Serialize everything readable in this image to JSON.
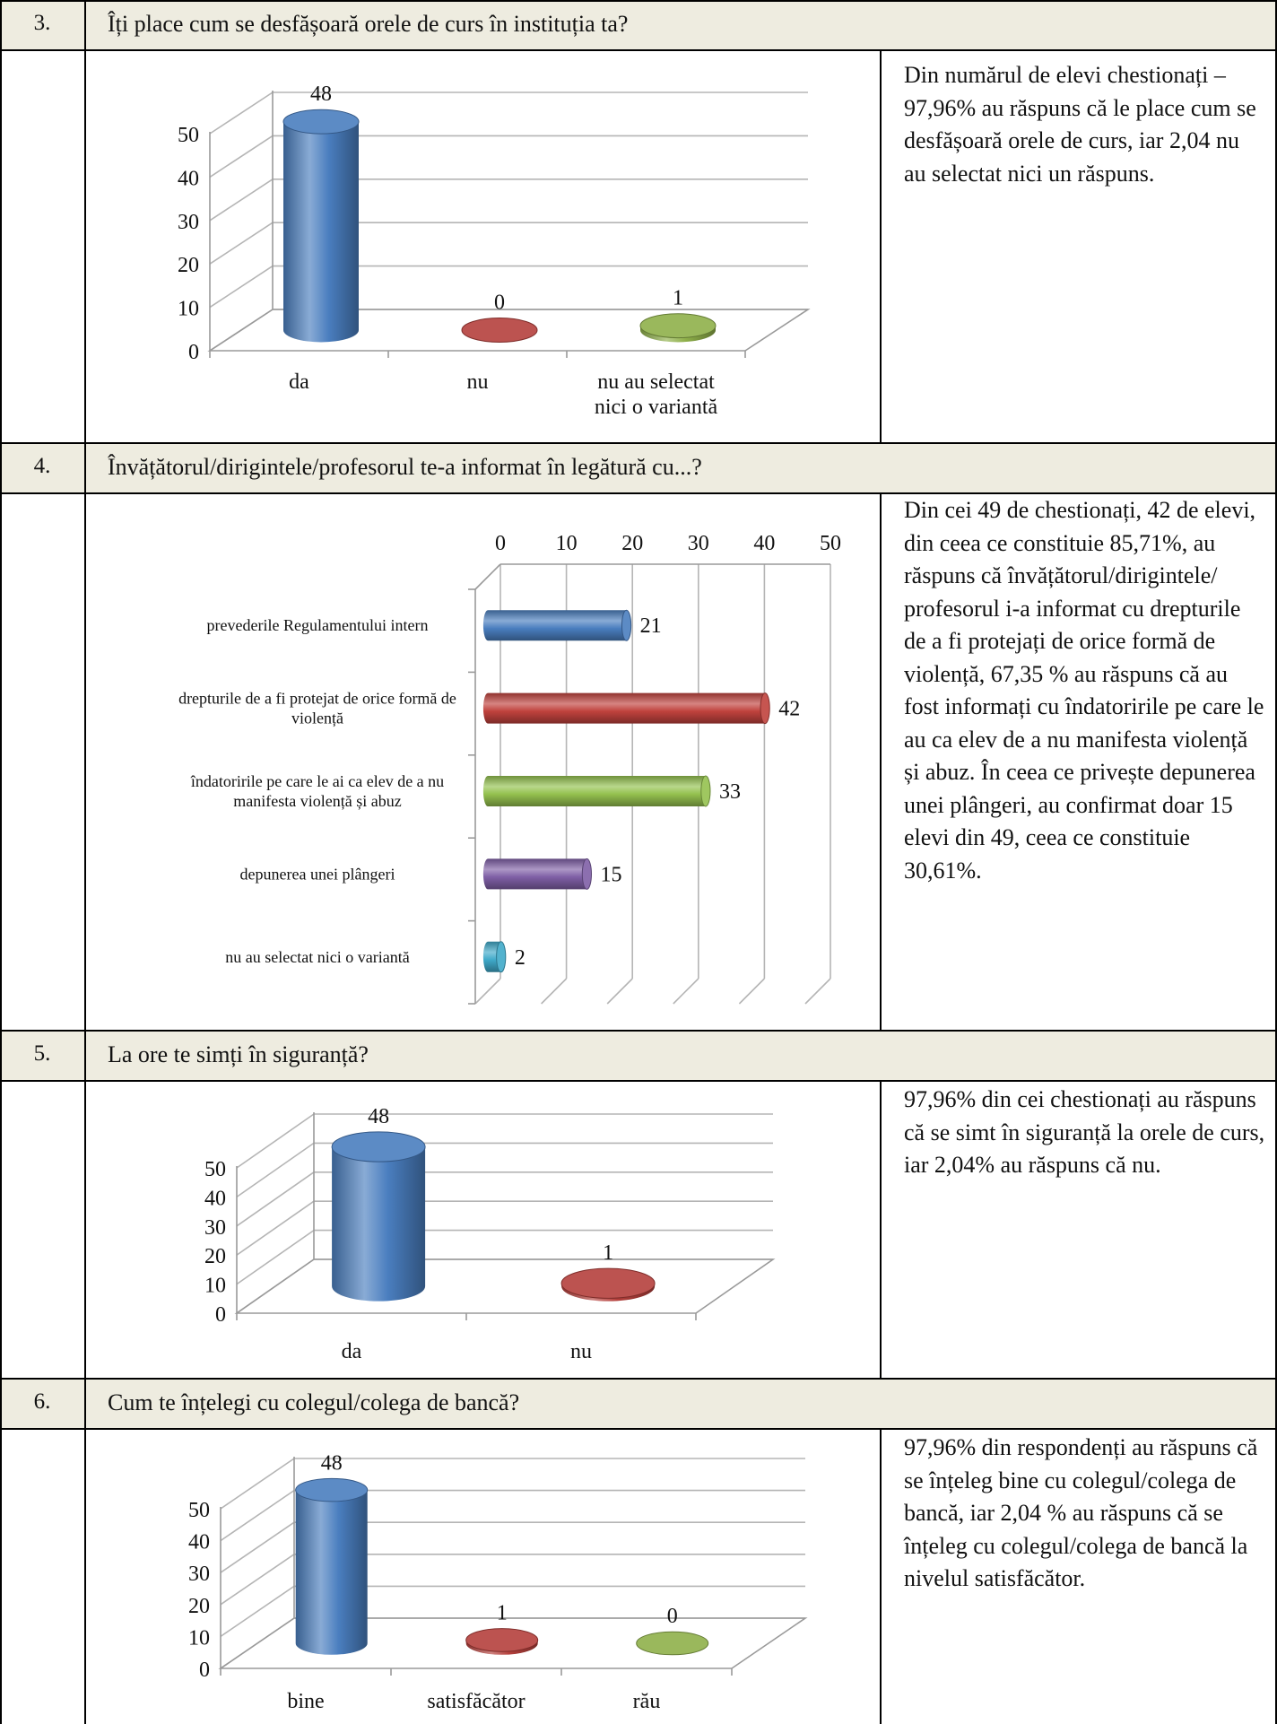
{
  "sections": [
    {
      "number": "3.",
      "question": "Îți place cum se desfășoară  orele de curs în instituția ta?",
      "description": "Din numărul de elevi chestionați – 97,96% au răspuns că le place cum se desfășoară orele de curs, iar 2,04 nu au selectat nici un răspuns."
    },
    {
      "number": "4.",
      "question": "Învățătorul/dirigintele/profesorul te-a informat în legătură cu...?",
      "description": "Din cei 49 de chestionați, 42 de elevi, din ceea ce constituie 85,71%,  au răspuns că învățătorul/dirigintele/ profesorul i-a informat cu drepturile de a fi protejați de orice formă de violență, 67,35 % au răspuns că au fost informați cu îndatoririle pe care le au ca elev de a nu manifesta violență și abuz. În ceea ce privește depunerea unei plângeri, au confirmat doar 15 elevi din 49, ceea ce constituie 30,61%."
    },
    {
      "number": "5.",
      "question": "La ore te simți în siguranță?",
      "description": "97,96%  din cei chestionați au răspuns că se simt în siguranță la orele de curs, iar 2,04% au răspuns că nu."
    },
    {
      "number": "6.",
      "question": "Cum te înțelegi cu colegul/colega de bancă?",
      "description": "97,96% din respondenți  au răspuns că se înțeleg bine cu colegul/colega de bancă, iar 2,04 % au răspuns că se înțeleg cu colegul/colega de bancă la nivelul satisfăcător."
    }
  ],
  "chart_data": [
    {
      "type": "bar",
      "categories": [
        "da",
        "nu",
        "nu au selectat nici o variantă"
      ],
      "values": [
        48,
        0,
        1
      ],
      "ylim": [
        0,
        50
      ],
      "yticks": [
        "0",
        "10",
        "20",
        "30",
        "40",
        "50"
      ],
      "colors": [
        "#4a7ebf",
        "#b5403c",
        "#8fb04a"
      ]
    },
    {
      "type": "bar",
      "orientation": "horizontal",
      "categories": [
        "prevederile Regulamentului intern",
        "drepturile de a fi protejat de orice formă de violență",
        "îndatoririle pe care le ai ca elev de a nu manifesta violență și abuz",
        "depunerea unei plângeri",
        "nu au selectat nici o variantă"
      ],
      "values": [
        21,
        42,
        33,
        15,
        2
      ],
      "xlim": [
        0,
        50
      ],
      "xticks": [
        "0",
        "10",
        "20",
        "30",
        "40",
        "50"
      ],
      "colors": [
        "#4a7ebf",
        "#c0423d",
        "#94c14e",
        "#7f5fa6",
        "#3fa9c9"
      ]
    },
    {
      "type": "bar",
      "categories": [
        "da",
        "nu"
      ],
      "values": [
        48,
        1
      ],
      "ylim": [
        0,
        50
      ],
      "yticks": [
        "0",
        "10",
        "20",
        "30",
        "40",
        "50"
      ],
      "colors": [
        "#4a7ebf",
        "#b5403c"
      ]
    },
    {
      "type": "bar",
      "categories": [
        "bine",
        "satisfăcător",
        "rău"
      ],
      "values": [
        48,
        1,
        0
      ],
      "ylim": [
        0,
        50
      ],
      "yticks": [
        "0",
        "10",
        "20",
        "30",
        "40",
        "50"
      ],
      "colors": [
        "#4a7ebf",
        "#b5403c",
        "#8fb04a"
      ]
    }
  ]
}
